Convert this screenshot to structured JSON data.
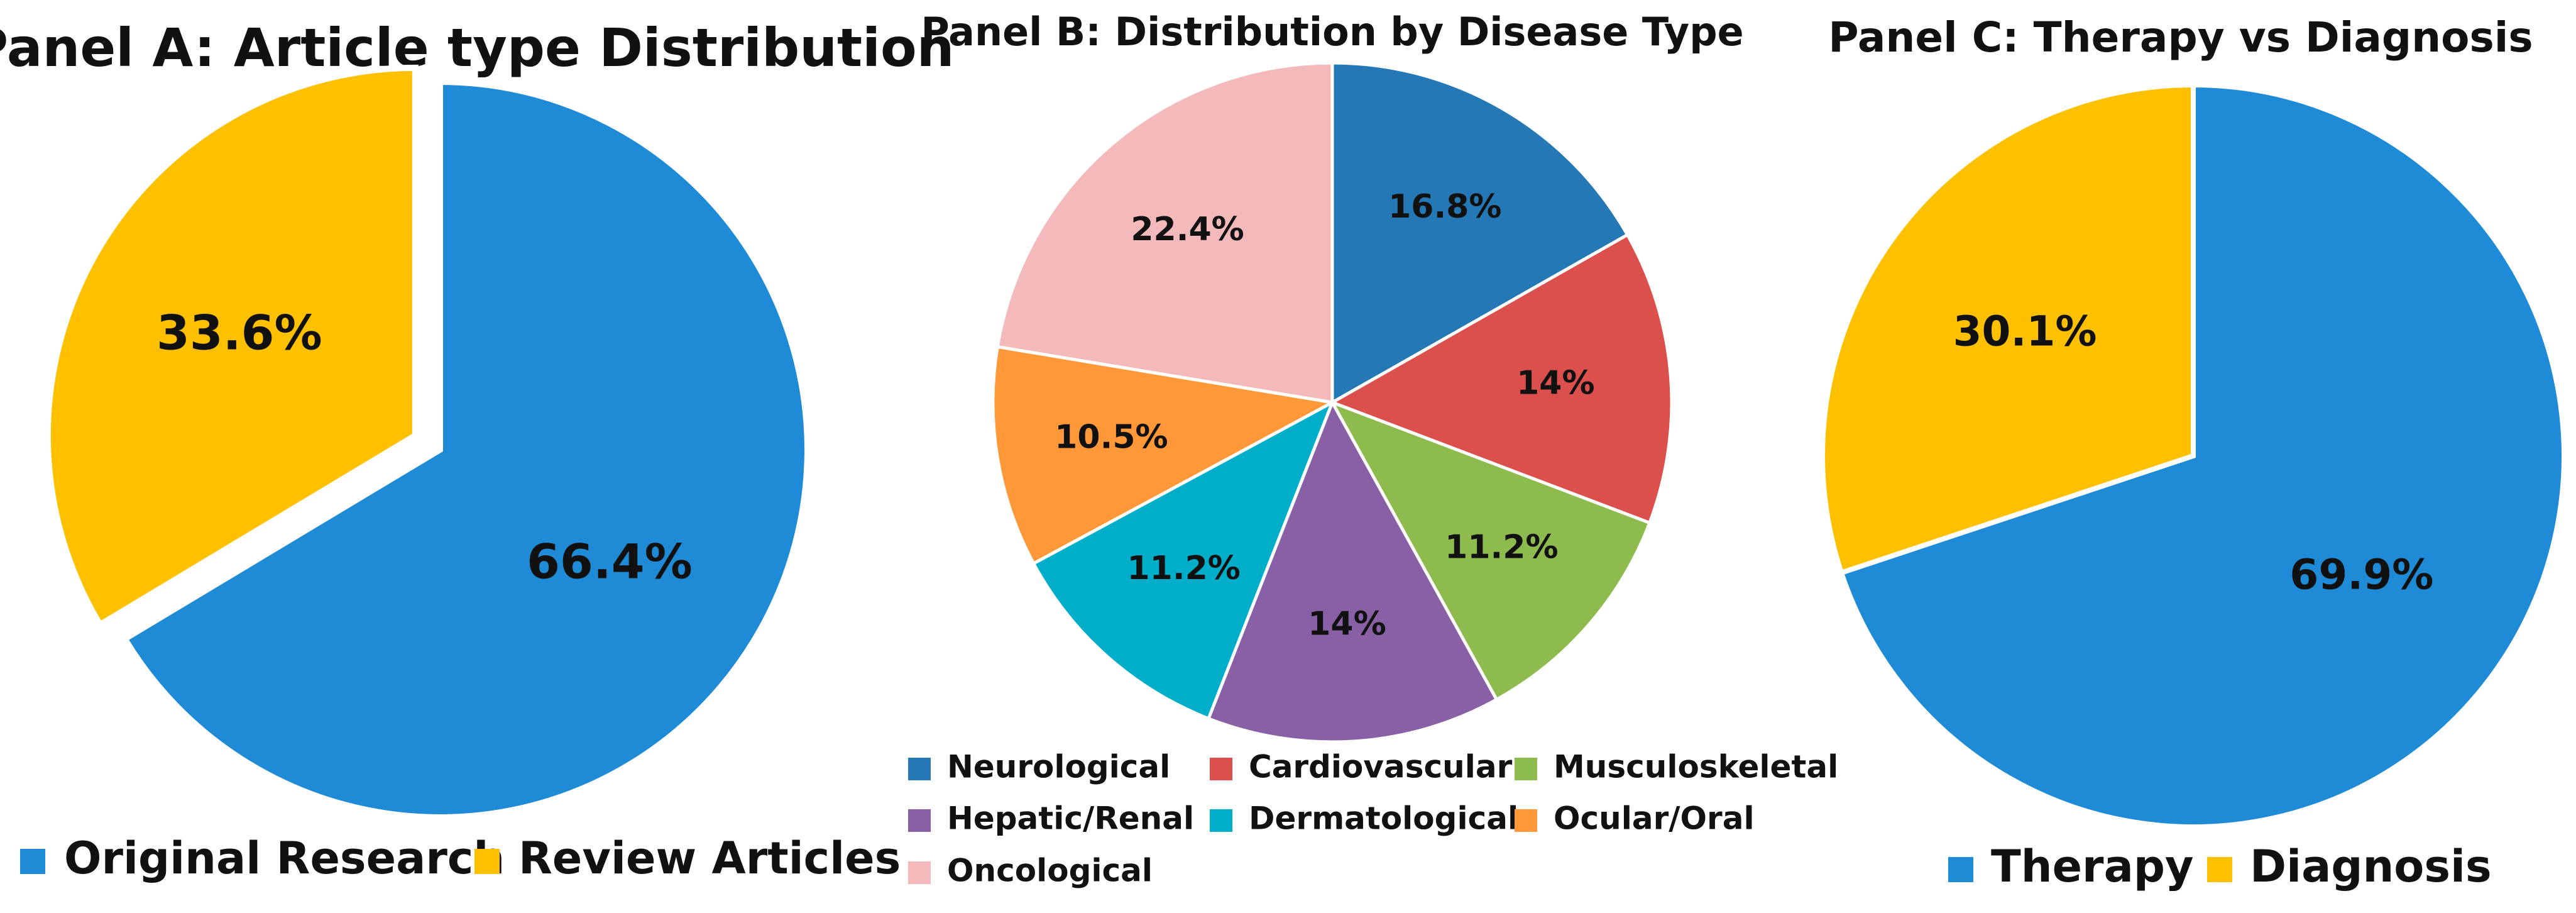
{
  "chart_data": [
    {
      "type": "pie",
      "title": "Panel A: Article type Distribution",
      "categories": [
        "Original Research",
        "Review Articles"
      ],
      "values": [
        66.4,
        33.6
      ],
      "labels": [
        "66.4%",
        "33.6%"
      ],
      "colors": [
        "#1F8BD6",
        "#FFC000"
      ],
      "exploded": [
        "Review Articles"
      ],
      "legend": "bottom"
    },
    {
      "type": "pie",
      "title": "Panel B: Distribution by Disease Type",
      "categories": [
        "Neurological",
        "Cardiovascular",
        "Musculoskeletal",
        "Hepatic/Renal",
        "Dermatological",
        "Ocular/Oral",
        "Oncological"
      ],
      "values": [
        16.8,
        14,
        11.2,
        14,
        11.2,
        10.5,
        22.4
      ],
      "labels": [
        "16.8%",
        "14%",
        "11.2%",
        "14%",
        "11.2%",
        "10.5%",
        "22.4%"
      ],
      "colors": [
        "#2478B5",
        "#DB4F4C",
        "#8DBB4E",
        "#8960A5",
        "#00AEC9",
        "#FF9838",
        "#F4B9BA"
      ],
      "legend": "bottom"
    },
    {
      "type": "pie",
      "title": "Panel C: Therapy vs Diagnosis",
      "categories": [
        "Therapy",
        "Diagnosis"
      ],
      "values": [
        69.9,
        30.1
      ],
      "labels": [
        "69.9%",
        "30.1%"
      ],
      "colors": [
        "#1F8BD6",
        "#FFC000"
      ],
      "legend": "bottom"
    }
  ]
}
